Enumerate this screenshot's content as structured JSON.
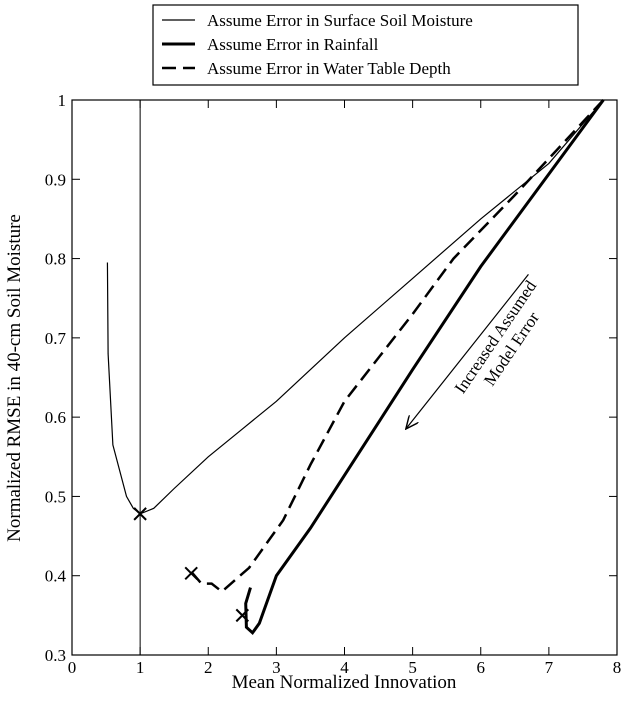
{
  "chart_data": {
    "type": "line",
    "xlabel": "Mean Normalized Innovation",
    "ylabel": "Normalized RMSE in 40-cm Soil Moisture",
    "xlim": [
      0,
      8
    ],
    "ylim": [
      0.3,
      1
    ],
    "xticks": [
      0,
      1,
      2,
      3,
      4,
      5,
      6,
      7,
      8
    ],
    "yticks": [
      0.3,
      0.4,
      0.5,
      0.6,
      0.7,
      0.8,
      0.9,
      1
    ],
    "legend": "top",
    "series": [
      {
        "name": "Assume Error in Surface Soil Moisture",
        "color": "#000000",
        "width": 1.2,
        "dash": "none",
        "x": [
          0.52,
          0.53,
          0.6,
          0.8,
          0.9,
          1.0,
          1.2,
          1.5,
          2,
          2.5,
          3,
          4,
          5,
          6,
          6.5,
          7,
          7.8
        ],
        "values": [
          0.795,
          0.68,
          0.565,
          0.5,
          0.485,
          0.478,
          0.485,
          0.51,
          0.55,
          0.585,
          0.62,
          0.7,
          0.775,
          0.85,
          0.885,
          0.92,
          1.0
        ]
      },
      {
        "name": "Assume Error in Rainfall",
        "color": "#000000",
        "width": 3,
        "dash": "none",
        "x": [
          7.8,
          6,
          5,
          4.1,
          3.5,
          3.0,
          2.75,
          2.65,
          2.56,
          2.55,
          2.62
        ],
        "values": [
          1.0,
          0.79,
          0.66,
          0.54,
          0.46,
          0.4,
          0.34,
          0.328,
          0.335,
          0.365,
          0.385
        ]
      },
      {
        "name": "Assume Error in Water Table Depth",
        "color": "#000000",
        "width": 2.5,
        "dash": "14 7",
        "x": [
          7.8,
          6.5,
          5.6,
          5,
          4,
          3.5,
          3.1,
          2.6,
          2.2,
          2.05,
          1.9,
          1.75
        ],
        "values": [
          1.0,
          0.88,
          0.8,
          0.73,
          0.62,
          0.54,
          0.47,
          0.41,
          0.38,
          0.39,
          0.39,
          0.405
        ]
      }
    ],
    "markers": {
      "x": [
        1.0,
        2.5,
        1.75
      ],
      "values": [
        0.478,
        0.35,
        0.403
      ]
    },
    "vline_x": 1,
    "annotation": {
      "lines": [
        "Increased Assumed",
        "Model Error"
      ],
      "arrow_from": [
        6.7,
        0.78
      ],
      "arrow_to": [
        4.9,
        0.585
      ]
    }
  }
}
